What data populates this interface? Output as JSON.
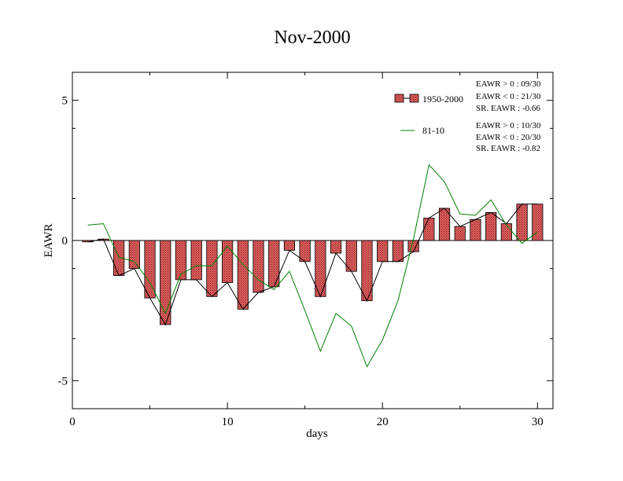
{
  "chart_data": {
    "type": "bar",
    "title": "Nov-2000",
    "xlabel": "days",
    "ylabel": "EAWR",
    "xlim": [
      0,
      31
    ],
    "ylim": [
      -6,
      6
    ],
    "xticks": [
      0,
      10,
      20,
      30
    ],
    "yticks": [
      -5,
      0,
      5
    ],
    "grid": false,
    "legend_position": "top-right",
    "x": [
      1,
      2,
      3,
      4,
      5,
      6,
      7,
      8,
      9,
      10,
      11,
      12,
      13,
      14,
      15,
      16,
      17,
      18,
      19,
      20,
      21,
      22,
      23,
      24,
      25,
      26,
      27,
      28,
      29,
      30
    ],
    "series": [
      {
        "name": "1950-2000",
        "type": "bar",
        "color": "#e06060",
        "values": [
          -0.05,
          0.05,
          -1.25,
          -1.0,
          -2.05,
          -3.0,
          -1.4,
          -1.4,
          -2.0,
          -1.5,
          -2.45,
          -1.85,
          -1.65,
          -0.35,
          -0.75,
          -2.0,
          -0.45,
          -1.1,
          -2.15,
          -0.75,
          -0.75,
          -0.4,
          0.8,
          1.15,
          0.5,
          0.75,
          1.0,
          0.6,
          1.3,
          1.3
        ]
      },
      {
        "name": "81-10",
        "type": "line",
        "color": "#008000",
        "values": [
          0.55,
          0.6,
          -0.6,
          -0.75,
          -1.5,
          -2.6,
          -1.2,
          -0.9,
          -0.9,
          -0.2,
          -0.85,
          -1.4,
          -1.75,
          -1.1,
          -2.5,
          -3.95,
          -2.6,
          -3.05,
          -4.5,
          -3.55,
          -2.15,
          0.05,
          2.7,
          2.1,
          0.95,
          0.9,
          1.45,
          0.55,
          -0.1,
          0.3
        ]
      }
    ],
    "annotations": [
      "EAWR > 0 : 09/30",
      "EAWR < 0 : 21/30",
      "SR. EAWR : -0.66",
      "EAWR > 0 : 10/30",
      "EAWR < 0 : 20/30",
      "SR. EAWR : -0.82"
    ]
  }
}
